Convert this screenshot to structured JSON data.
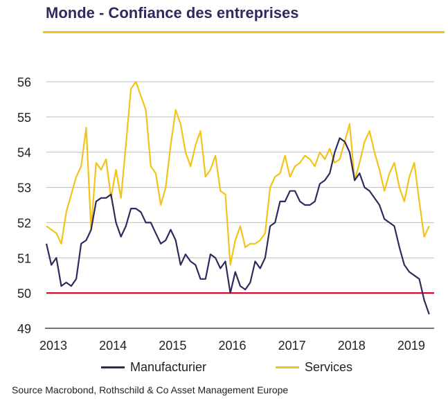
{
  "title": "Monde - Confiance des entreprises",
  "source": "Source Macrobond,  Rothschild & Co Asset Management  Europe",
  "colors": {
    "manufacturier": "#2e2a5c",
    "services": "#f2c318",
    "threshold": "#c8102e",
    "grid": "#bdbdbd",
    "title_rule": "#f2c318"
  },
  "chart_data": {
    "type": "line",
    "title": "Monde - Confiance des entreprises",
    "xlabel": "",
    "ylabel": "",
    "xlim": [
      2013,
      2019.5
    ],
    "ylim": [
      49,
      56
    ],
    "x_ticks": [
      "2013",
      "2014",
      "2015",
      "2016",
      "2017",
      "2018",
      "2019"
    ],
    "y_ticks": [
      "49",
      "50",
      "51",
      "52",
      "53",
      "54",
      "55",
      "56"
    ],
    "grid": true,
    "legend_position": "bottom",
    "reference_line": {
      "y": 50
    },
    "x": [
      2013.0,
      2013.083,
      2013.167,
      2013.25,
      2013.333,
      2013.417,
      2013.5,
      2013.583,
      2013.667,
      2013.75,
      2013.833,
      2013.917,
      2014.0,
      2014.083,
      2014.167,
      2014.25,
      2014.333,
      2014.417,
      2014.5,
      2014.583,
      2014.667,
      2014.75,
      2014.833,
      2014.917,
      2015.0,
      2015.083,
      2015.167,
      2015.25,
      2015.333,
      2015.417,
      2015.5,
      2015.583,
      2015.667,
      2015.75,
      2015.833,
      2015.917,
      2016.0,
      2016.083,
      2016.167,
      2016.25,
      2016.333,
      2016.417,
      2016.5,
      2016.583,
      2016.667,
      2016.75,
      2016.833,
      2016.917,
      2017.0,
      2017.083,
      2017.167,
      2017.25,
      2017.333,
      2017.417,
      2017.5,
      2017.583,
      2017.667,
      2017.75,
      2017.833,
      2017.917,
      2018.0,
      2018.083,
      2018.167,
      2018.25,
      2018.333,
      2018.417,
      2018.5,
      2018.583,
      2018.667,
      2018.75,
      2018.833,
      2018.917,
      2019.0,
      2019.083,
      2019.167,
      2019.25,
      2019.333,
      2019.417
    ],
    "series": [
      {
        "name": "Manufacturier",
        "color": "#2e2a5c",
        "values": [
          51.4,
          50.8,
          51.0,
          50.2,
          50.3,
          50.2,
          50.4,
          51.4,
          51.5,
          51.8,
          52.6,
          52.7,
          52.7,
          52.8,
          52.0,
          51.6,
          51.9,
          52.4,
          52.4,
          52.3,
          52.0,
          52.0,
          51.7,
          51.4,
          51.5,
          51.8,
          51.5,
          50.8,
          51.1,
          50.9,
          50.8,
          50.4,
          50.4,
          51.1,
          51.0,
          50.7,
          50.9,
          50.0,
          50.6,
          50.2,
          50.1,
          50.3,
          50.9,
          50.7,
          51.0,
          51.9,
          52.0,
          52.6,
          52.6,
          52.9,
          52.9,
          52.6,
          52.5,
          52.5,
          52.6,
          53.1,
          53.2,
          53.4,
          54.0,
          54.4,
          54.3,
          54.0,
          53.2,
          53.4,
          53.0,
          52.9,
          52.7,
          52.5,
          52.1,
          52.0,
          51.9,
          51.3,
          50.8,
          50.6,
          50.5,
          50.4,
          49.8,
          49.4
        ]
      },
      {
        "name": "Services",
        "color": "#f2c318",
        "values": [
          51.9,
          51.8,
          51.7,
          51.4,
          52.3,
          52.8,
          53.3,
          53.6,
          54.7,
          51.8,
          53.7,
          53.5,
          53.8,
          52.7,
          53.5,
          52.7,
          54.2,
          55.8,
          56.0,
          55.6,
          55.2,
          53.6,
          53.4,
          52.5,
          53.0,
          54.2,
          55.2,
          54.8,
          54.0,
          53.6,
          54.2,
          54.6,
          53.3,
          53.5,
          53.9,
          52.9,
          52.8,
          50.8,
          51.5,
          51.9,
          51.3,
          51.4,
          51.4,
          51.5,
          51.7,
          53.0,
          53.3,
          53.4,
          53.9,
          53.3,
          53.6,
          53.7,
          53.9,
          53.8,
          53.6,
          54.0,
          53.8,
          54.1,
          53.7,
          53.8,
          54.3,
          54.8,
          53.2,
          53.7,
          54.3,
          54.6,
          54.0,
          53.5,
          52.9,
          53.4,
          53.7,
          53.0,
          52.6,
          53.3,
          53.7,
          52.6,
          51.6,
          51.9
        ]
      }
    ]
  },
  "legend": {
    "manufacturier_label": "Manufacturier",
    "services_label": "Services"
  }
}
